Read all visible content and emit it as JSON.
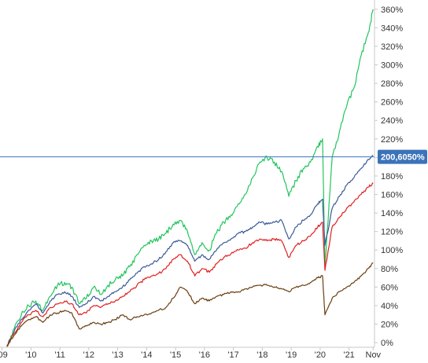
{
  "chart_data": {
    "type": "line",
    "title": "",
    "xlabel": "",
    "ylabel": "",
    "y_unit": "%",
    "ylim": [
      -5,
      370
    ],
    "y_ticks": [
      0,
      20,
      40,
      60,
      80,
      100,
      120,
      140,
      160,
      180,
      200,
      220,
      240,
      260,
      280,
      300,
      320,
      340,
      360
    ],
    "y_tick_labels": [
      "0%",
      "20%",
      "40%",
      "60%",
      "80%",
      "100%",
      "120%",
      "140%",
      "160%",
      "180%",
      "200%",
      "220%",
      "240%",
      "260%",
      "280%",
      "300%",
      "320%",
      "340%",
      "360%"
    ],
    "x_range": [
      "2009-03",
      "2021-11"
    ],
    "x_ticks": [
      "2009-01",
      "2010-01",
      "2011-01",
      "2012-01",
      "2013-01",
      "2014-01",
      "2015-01",
      "2016-01",
      "2017-01",
      "2018-01",
      "2019-01",
      "2020-01",
      "2021-01",
      "2021-11"
    ],
    "x_tick_labels": [
      "'09",
      "'10",
      "'11",
      "'12",
      "'13",
      "'14",
      "'15",
      "'16",
      "'17",
      "'18",
      "'19",
      "'20",
      "'21",
      "Nov"
    ],
    "grid": false,
    "legend": "none",
    "crosshair": {
      "value": 200.605,
      "label": "200,6050%"
    },
    "series": [
      {
        "color": "#22c55e",
        "x": [
          "2009-03",
          "2009-06",
          "2009-09",
          "2009-12",
          "2010-03",
          "2010-06",
          "2010-09",
          "2010-12",
          "2011-03",
          "2011-06",
          "2011-09",
          "2011-12",
          "2012-03",
          "2012-06",
          "2012-09",
          "2012-12",
          "2013-03",
          "2013-06",
          "2013-09",
          "2013-12",
          "2014-03",
          "2014-06",
          "2014-09",
          "2014-12",
          "2015-03",
          "2015-06",
          "2015-09",
          "2015-12",
          "2016-03",
          "2016-06",
          "2016-09",
          "2016-12",
          "2017-03",
          "2017-06",
          "2017-09",
          "2017-12",
          "2018-03",
          "2018-06",
          "2018-09",
          "2018-12",
          "2019-03",
          "2019-06",
          "2019-09",
          "2019-12",
          "2020-02",
          "2020-03",
          "2020-06",
          "2020-09",
          "2020-12",
          "2021-03",
          "2021-06",
          "2021-09",
          "2021-11"
        ],
        "y": [
          -5,
          15,
          30,
          40,
          45,
          35,
          50,
          62,
          65,
          60,
          42,
          48,
          60,
          52,
          62,
          68,
          72,
          82,
          95,
          105,
          110,
          112,
          118,
          128,
          132,
          120,
          95,
          108,
          100,
          118,
          130,
          138,
          150,
          160,
          178,
          195,
          200,
          195,
          185,
          158,
          175,
          188,
          195,
          212,
          220,
          82,
          200,
          228,
          255,
          275,
          310,
          335,
          360
        ]
      },
      {
        "color": "#3b5998",
        "x": [
          "2009-03",
          "2009-06",
          "2009-09",
          "2009-12",
          "2010-03",
          "2010-06",
          "2010-09",
          "2010-12",
          "2011-03",
          "2011-06",
          "2011-09",
          "2011-12",
          "2012-03",
          "2012-06",
          "2012-09",
          "2012-12",
          "2013-03",
          "2013-06",
          "2013-09",
          "2013-12",
          "2014-03",
          "2014-06",
          "2014-09",
          "2014-12",
          "2015-03",
          "2015-06",
          "2015-09",
          "2015-12",
          "2016-03",
          "2016-06",
          "2016-09",
          "2016-12",
          "2017-03",
          "2017-06",
          "2017-09",
          "2017-12",
          "2018-03",
          "2018-06",
          "2018-09",
          "2018-12",
          "2019-03",
          "2019-06",
          "2019-09",
          "2019-12",
          "2020-02",
          "2020-03",
          "2020-06",
          "2020-09",
          "2020-12",
          "2021-03",
          "2021-06",
          "2021-09",
          "2021-11"
        ],
        "y": [
          -4,
          12,
          25,
          35,
          42,
          32,
          45,
          52,
          55,
          50,
          38,
          42,
          50,
          45,
          50,
          55,
          60,
          68,
          75,
          82,
          85,
          90,
          98,
          108,
          110,
          105,
          88,
          95,
          90,
          100,
          108,
          112,
          118,
          120,
          125,
          130,
          128,
          130,
          132,
          112,
          125,
          132,
          138,
          150,
          155,
          105,
          145,
          158,
          170,
          178,
          188,
          198,
          202
        ]
      },
      {
        "color": "#e02020",
        "x": [
          "2009-03",
          "2009-06",
          "2009-09",
          "2009-12",
          "2010-03",
          "2010-06",
          "2010-09",
          "2010-12",
          "2011-03",
          "2011-06",
          "2011-09",
          "2011-12",
          "2012-03",
          "2012-06",
          "2012-09",
          "2012-12",
          "2013-03",
          "2013-06",
          "2013-09",
          "2013-12",
          "2014-03",
          "2014-06",
          "2014-09",
          "2014-12",
          "2015-03",
          "2015-06",
          "2015-09",
          "2015-12",
          "2016-03",
          "2016-06",
          "2016-09",
          "2016-12",
          "2017-03",
          "2017-06",
          "2017-09",
          "2017-12",
          "2018-03",
          "2018-06",
          "2018-09",
          "2018-12",
          "2019-03",
          "2019-06",
          "2019-09",
          "2019-12",
          "2020-02",
          "2020-03",
          "2020-06",
          "2020-09",
          "2020-12",
          "2021-03",
          "2021-06",
          "2021-09",
          "2021-11"
        ],
        "y": [
          -4,
          10,
          22,
          30,
          35,
          28,
          38,
          42,
          45,
          42,
          30,
          32,
          40,
          38,
          42,
          45,
          50,
          55,
          62,
          68,
          72,
          75,
          80,
          90,
          95,
          88,
          72,
          80,
          76,
          85,
          92,
          96,
          100,
          102,
          108,
          112,
          110,
          112,
          110,
          92,
          105,
          110,
          115,
          125,
          130,
          78,
          125,
          135,
          145,
          152,
          160,
          168,
          172
        ]
      },
      {
        "color": "#6b3e10",
        "x": [
          "2009-03",
          "2009-06",
          "2009-09",
          "2009-12",
          "2010-03",
          "2010-06",
          "2010-09",
          "2010-12",
          "2011-03",
          "2011-06",
          "2011-09",
          "2011-12",
          "2012-03",
          "2012-06",
          "2012-09",
          "2012-12",
          "2013-03",
          "2013-06",
          "2013-09",
          "2013-12",
          "2014-03",
          "2014-06",
          "2014-09",
          "2014-12",
          "2015-03",
          "2015-06",
          "2015-09",
          "2015-12",
          "2016-03",
          "2016-06",
          "2016-09",
          "2016-12",
          "2017-03",
          "2017-06",
          "2017-09",
          "2017-12",
          "2018-03",
          "2018-06",
          "2018-09",
          "2018-12",
          "2019-03",
          "2019-06",
          "2019-09",
          "2019-12",
          "2020-02",
          "2020-03",
          "2020-06",
          "2020-09",
          "2020-12",
          "2021-03",
          "2021-06",
          "2021-09",
          "2021-11"
        ],
        "y": [
          -3,
          8,
          18,
          25,
          28,
          22,
          30,
          32,
          35,
          32,
          15,
          18,
          22,
          20,
          22,
          25,
          30,
          25,
          28,
          30,
          32,
          35,
          38,
          48,
          60,
          55,
          42,
          48,
          45,
          50,
          52,
          55,
          55,
          58,
          60,
          62,
          62,
          60,
          58,
          55,
          60,
          62,
          65,
          70,
          72,
          30,
          48,
          55,
          60,
          65,
          72,
          80,
          86
        ]
      }
    ]
  }
}
